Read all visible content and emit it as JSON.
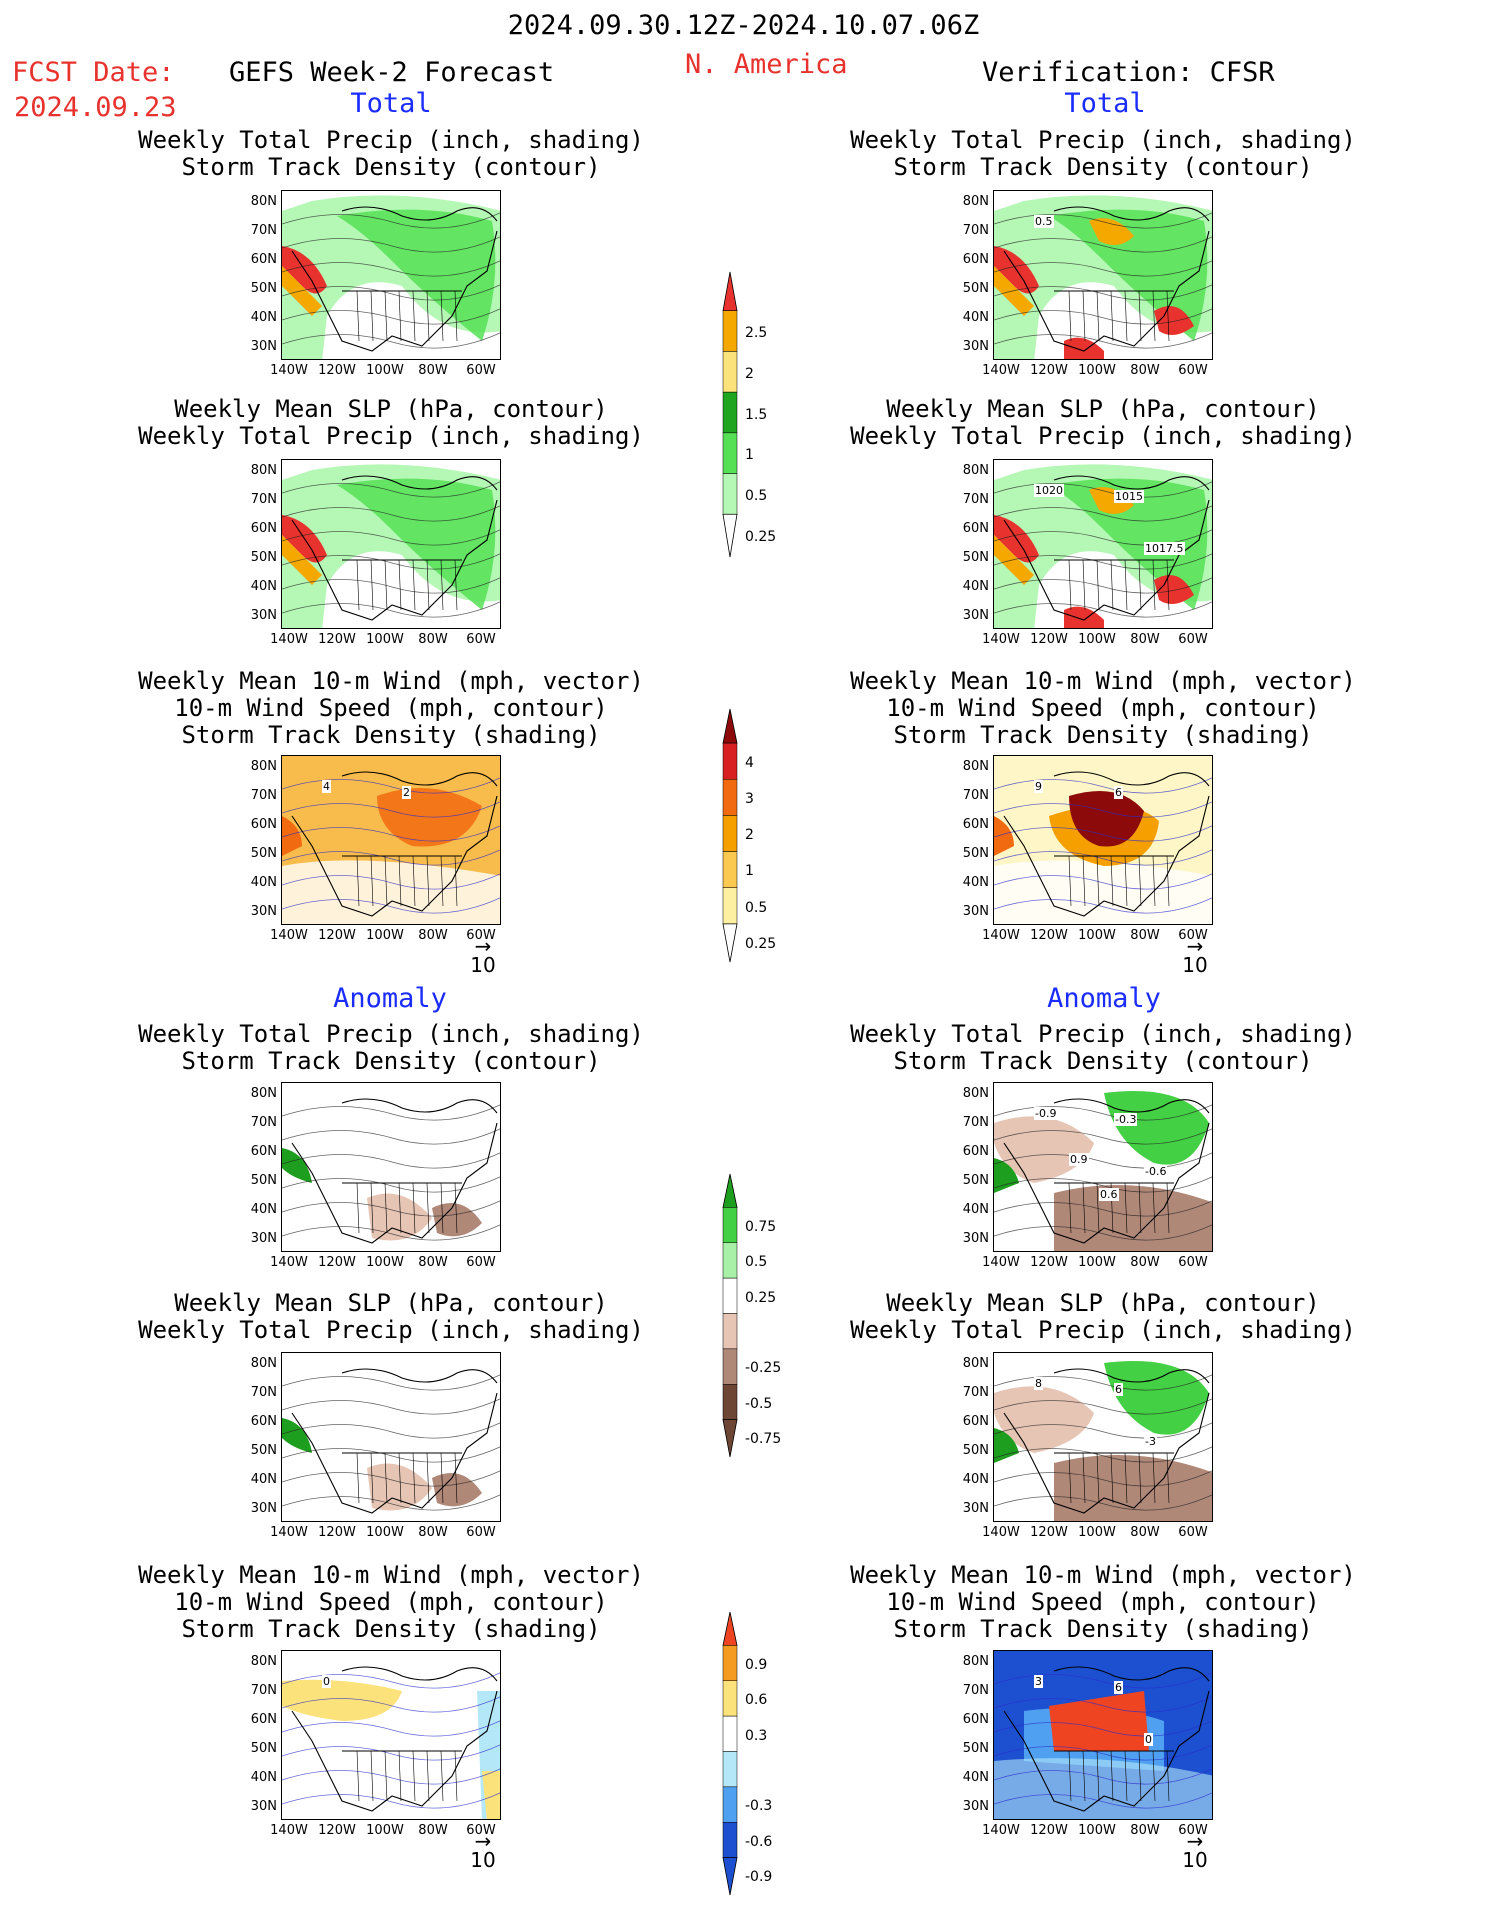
{
  "header": {
    "date_range": "2024.09.30.12Z-2024.10.07.06Z",
    "fcst_label": "FCST Date:",
    "fcst_date": "2024.09.23",
    "forecast_title": "GEFS Week-2 Forecast",
    "region": "N. America",
    "verification": "Verification: CFSR"
  },
  "sections": {
    "total": "Total",
    "anomaly": "Anomaly"
  },
  "panel_titles": {
    "precip_storm": [
      "Weekly Total Precip (inch, shading)",
      "Storm Track Density (contour)"
    ],
    "slp_precip": [
      "Weekly Mean SLP (hPa, contour)",
      "Weekly Total Precip (inch, shading)"
    ],
    "wind_storm": [
      "Weekly Mean 10-m Wind (mph, vector)",
      "10-m Wind Speed (mph, contour)",
      "Storm Track Density (shading)"
    ]
  },
  "axes": {
    "lat_ticks": [
      "80N",
      "70N",
      "60N",
      "50N",
      "40N",
      "30N"
    ],
    "lon_ticks": [
      "140W",
      "120W",
      "100W",
      "80W",
      "60W"
    ]
  },
  "vector_reference": "10",
  "colorbars": [
    {
      "id": "precip-total",
      "labels": [
        "2.5",
        "2",
        "1.5",
        "1",
        "0.5",
        "0.25"
      ],
      "colors": [
        "#e8322e",
        "#f5a800",
        "#fbe27a",
        "#1fa51f",
        "#55e055",
        "#b5f7b5"
      ]
    },
    {
      "id": "storm-total",
      "labels": [
        "4",
        "3",
        "2",
        "1",
        "0.5",
        "0.25"
      ],
      "colors": [
        "#8c0a0a",
        "#d92020",
        "#f26a10",
        "#f5a000",
        "#fbc850",
        "#fdf0a0"
      ]
    },
    {
      "id": "precip-anom",
      "labels": [
        "0.75",
        "0.5",
        "0.25",
        "-0.25",
        "-0.5",
        "-0.75"
      ],
      "colors": [
        "#1e9e1e",
        "#44d044",
        "#a8f0a8",
        "#ffffff",
        "#e6c5b5",
        "#b08878",
        "#6e4636"
      ]
    },
    {
      "id": "storm-anom",
      "labels": [
        "0.9",
        "0.6",
        "0.3",
        "-0.3",
        "-0.6",
        "-0.9"
      ],
      "colors": [
        "#ee4422",
        "#f59c20",
        "#fbe27a",
        "#ffffff",
        "#b4e8f8",
        "#4fa0f0",
        "#1c50d0"
      ]
    }
  ],
  "contour_labels": {
    "obs_total_precip": [
      "0.5"
    ],
    "obs_total_slp": [
      "1020",
      "1015",
      "1017.5"
    ],
    "fcst_total_wind": [
      "4",
      "2"
    ],
    "obs_total_wind": [
      "9",
      "6"
    ],
    "obs_anom_precip": [
      "-0.9",
      "-0.3",
      "-0.6",
      "0.9",
      "0.6"
    ],
    "obs_anom_slp": [
      "8",
      "6",
      "-3"
    ],
    "fcst_anom_wind": [
      "0"
    ],
    "obs_anom_wind": [
      "3",
      "6",
      "0"
    ]
  },
  "colors": {
    "title_red": "#e8322e",
    "section_blue": "#1a2cff"
  }
}
